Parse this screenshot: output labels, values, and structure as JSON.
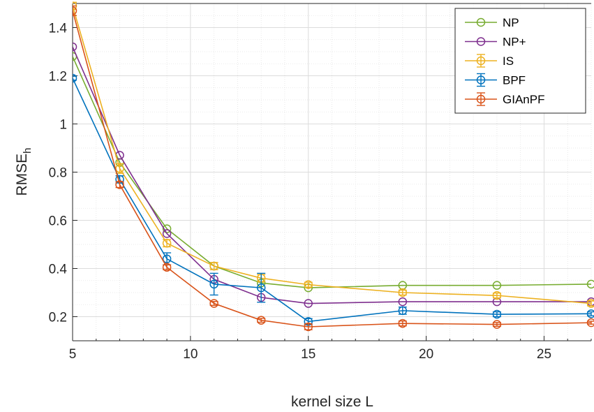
{
  "chart_data": {
    "type": "line",
    "title": "",
    "xlabel": "kernel size L",
    "ylabel": "RMSE",
    "ylabel_subscript": "h",
    "xlim": [
      5,
      27
    ],
    "ylim": [
      0.1,
      1.5
    ],
    "xticks": [
      5,
      10,
      15,
      20,
      25
    ],
    "xtick_labels": [
      "5",
      "10",
      "15",
      "20",
      "25"
    ],
    "yticks": [
      0.2,
      0.4,
      0.6,
      0.8,
      1.0,
      1.2,
      1.4
    ],
    "ytick_labels": [
      "0.2",
      "0.4",
      "0.6",
      "0.8",
      "1",
      "1.2",
      "1.4"
    ],
    "grid": true,
    "minor_grid": true,
    "legend_position": "top-right",
    "series": [
      {
        "name": "NP",
        "color": "#77AC30",
        "error_bars": false,
        "x": [
          5,
          7,
          9,
          11,
          13,
          15,
          19,
          23,
          27
        ],
        "y": [
          1.28,
          0.84,
          0.565,
          0.41,
          0.34,
          0.32,
          0.33,
          0.33,
          0.335
        ]
      },
      {
        "name": "NP+",
        "color": "#7E2F8E",
        "error_bars": false,
        "x": [
          5,
          7,
          9,
          11,
          13,
          15,
          19,
          23,
          27
        ],
        "y": [
          1.32,
          0.87,
          0.545,
          0.355,
          0.28,
          0.255,
          0.262,
          0.262,
          0.262
        ]
      },
      {
        "name": "IS",
        "color": "#EDB120",
        "error_bars": true,
        "x": [
          5,
          7,
          9,
          11,
          13,
          15,
          19,
          23,
          27
        ],
        "y": [
          1.49,
          0.815,
          0.505,
          0.41,
          0.36,
          0.333,
          0.3,
          0.288,
          0.255
        ],
        "err": [
          0.015,
          0.02,
          0.015,
          0.015,
          0.015,
          0.01,
          0.01,
          0.01,
          0.01
        ]
      },
      {
        "name": "BPF",
        "color": "#0072BD",
        "error_bars": true,
        "x": [
          5,
          7,
          9,
          11,
          13,
          15,
          19,
          23,
          27
        ],
        "y": [
          1.19,
          0.77,
          0.44,
          0.335,
          0.32,
          0.18,
          0.225,
          0.21,
          0.212
        ],
        "err": [
          0.008,
          0.015,
          0.025,
          0.045,
          0.06,
          0.012,
          0.015,
          0.01,
          0.008
        ]
      },
      {
        "name": "GIAnPF",
        "color": "#D95319",
        "error_bars": true,
        "x": [
          5,
          7,
          9,
          11,
          13,
          15,
          19,
          23,
          27
        ],
        "y": [
          1.47,
          0.748,
          0.405,
          0.255,
          0.185,
          0.158,
          0.172,
          0.168,
          0.175
        ],
        "err": [
          0.02,
          0.012,
          0.01,
          0.008,
          0.008,
          0.012,
          0.01,
          0.008,
          0.006
        ]
      }
    ]
  }
}
